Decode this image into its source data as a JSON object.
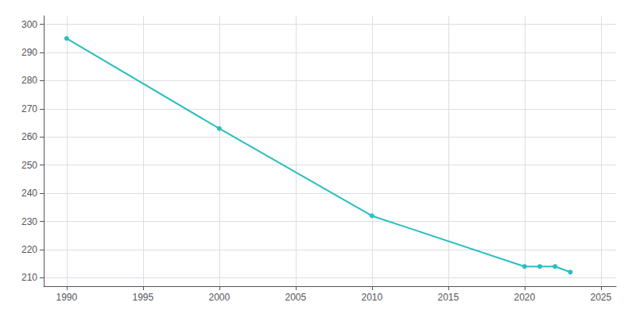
{
  "chart_data": {
    "type": "line",
    "x": [
      1990,
      2000,
      2010,
      2020,
      2021,
      2022,
      2023
    ],
    "values": [
      295,
      263,
      232,
      214,
      214,
      214,
      212
    ],
    "color": "#2ABFBF",
    "marker": "circle",
    "xlim": [
      1988.5,
      2026
    ],
    "xticks": [
      1990,
      1995,
      2000,
      2005,
      2010,
      2015,
      2020,
      2025
    ],
    "ylim": [
      207,
      303
    ],
    "yticks": [
      210,
      220,
      230,
      240,
      250,
      260,
      270,
      280,
      290,
      300
    ],
    "grid": true
  }
}
